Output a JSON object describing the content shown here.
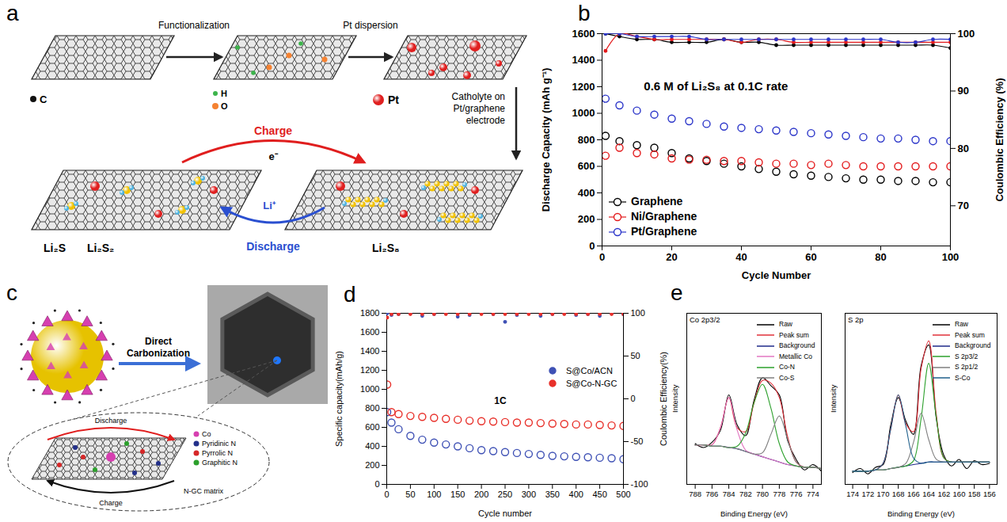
{
  "diagrams": [
    {
      "panel": "a",
      "atoms": [
        {
          "label": "C",
          "color": "#111111"
        },
        {
          "label": "H",
          "color": "#3cb44b"
        },
        {
          "label": "O",
          "color": "#f58231"
        },
        {
          "label": "Pt",
          "color": "#e02020"
        }
      ],
      "steps": [
        "Functionalization",
        "Pt dispersion",
        "Catholyte on Pt/graphene electrode"
      ],
      "cycle": {
        "charge": "Charge",
        "electron": "e⁻",
        "ion": "Li⁺",
        "discharge": "Discharge"
      },
      "species_discharged": [
        "Li₂S",
        "Li₂S₂"
      ],
      "species_charged": "Li₂S₈"
    },
    {
      "panel": "c",
      "step": "Direct Carbonization",
      "legend": [
        {
          "label": "Co",
          "color": "#d63fb0"
        },
        {
          "label": "Pyridinic N",
          "color": "#23308a"
        },
        {
          "label": "Pyrrolic N",
          "color": "#d62728"
        },
        {
          "label": "Graphitic N",
          "color": "#2ca02c"
        }
      ],
      "matrix": "N-GC matrix",
      "cycle": {
        "discharge": "Discharge",
        "charge": "Charge"
      }
    }
  ],
  "chart_data": [
    {
      "panel": "b",
      "type": "scatter",
      "x_label": "Cycle Number",
      "y_label": "Discharge Capacity (mAh g⁻¹)",
      "y2_label": "Coulombic Efficiency (%)",
      "x": [
        1,
        5,
        10,
        15,
        20,
        25,
        30,
        35,
        40,
        45,
        50,
        55,
        60,
        65,
        70,
        75,
        80,
        85,
        90,
        95,
        100
      ],
      "xlim": [
        0,
        100
      ],
      "xticks": [
        0,
        20,
        40,
        60,
        80,
        100
      ],
      "ylim": [
        0,
        1600
      ],
      "yticks": [
        0,
        200,
        400,
        600,
        800,
        1000,
        1200,
        1400,
        1600
      ],
      "y2lim": [
        63,
        100
      ],
      "y2ticks": [
        70,
        80,
        90,
        100
      ],
      "legend": "lower left",
      "annotations": [
        {
          "text": "0.6 M of Li₂S₈ at 0.1C rate",
          "x": 12,
          "y": 1200
        }
      ],
      "series": [
        {
          "name": "Graphene",
          "color": "#000000",
          "marker": "open_circle",
          "values": [
            830,
            790,
            760,
            740,
            700,
            660,
            640,
            620,
            600,
            580,
            560,
            540,
            530,
            520,
            510,
            500,
            500,
            490,
            490,
            480,
            480
          ]
        },
        {
          "name": "Ni/Graphene",
          "color": "#e31a1c",
          "marker": "open_circle",
          "values": [
            680,
            740,
            700,
            690,
            660,
            650,
            650,
            640,
            640,
            630,
            620,
            620,
            610,
            620,
            610,
            600,
            600,
            600,
            600,
            600,
            600
          ]
        },
        {
          "name": "Pt/Graphene",
          "color": "#2b35c9",
          "marker": "open_circle",
          "values": [
            1110,
            1060,
            1020,
            990,
            960,
            940,
            920,
            900,
            890,
            880,
            870,
            860,
            850,
            840,
            830,
            820,
            810,
            810,
            800,
            790,
            790
          ]
        },
        {
          "name": "Graphene",
          "color": "#000000",
          "axis": "y2",
          "type": "line",
          "marker": "dot",
          "values": [
            100,
            99.5,
            99,
            99,
            98.5,
            98.5,
            98.5,
            99,
            98.5,
            98.5,
            98,
            98,
            98,
            98,
            98,
            98,
            98,
            98,
            98,
            98,
            97.5
          ]
        },
        {
          "name": "Ni/Graphene",
          "color": "#e31a1c",
          "axis": "y2",
          "type": "line",
          "marker": "dot",
          "values": [
            97,
            100,
            99.5,
            99,
            99,
            99,
            99,
            99,
            98.5,
            99,
            99,
            98.5,
            98.5,
            98.5,
            98.5,
            98.5,
            98.5,
            98.5,
            98.5,
            98.5,
            98.5
          ]
        },
        {
          "name": "Pt/Graphene",
          "color": "#2b35c9",
          "axis": "y2",
          "type": "line",
          "marker": "dot",
          "values": [
            100,
            100,
            99.5,
            99.5,
            99.5,
            99.5,
            99,
            99,
            99,
            99,
            99,
            99,
            99,
            99,
            99,
            99,
            99,
            98.5,
            98.5,
            99,
            99
          ]
        }
      ]
    },
    {
      "panel": "d",
      "type": "scatter",
      "x_label": "Cycle number",
      "y_label": "Specific capacity(mAh/g)",
      "y2_label": "Coulombic Efficiency(%)",
      "x": [
        1,
        10,
        25,
        50,
        75,
        100,
        125,
        150,
        175,
        200,
        225,
        250,
        275,
        300,
        325,
        350,
        375,
        400,
        425,
        450,
        475,
        500
      ],
      "xlim": [
        0,
        500
      ],
      "xticks": [
        0,
        50,
        100,
        150,
        200,
        250,
        300,
        350,
        400,
        450,
        500
      ],
      "ylim": [
        0,
        1800
      ],
      "yticks": [
        0,
        200,
        400,
        600,
        800,
        1000,
        1200,
        1400,
        1600,
        1800
      ],
      "y2lim": [
        -100,
        100
      ],
      "y2ticks": [
        -100,
        -50,
        0,
        50,
        100
      ],
      "legend": "right",
      "annotations": [
        {
          "text": "1C",
          "x": 240,
          "y": 880
        }
      ],
      "series": [
        {
          "name": "S@Co/ACN",
          "color": "#3f51b5",
          "marker": "open_circle",
          "values": [
            760,
            650,
            580,
            510,
            470,
            440,
            420,
            400,
            380,
            360,
            350,
            340,
            330,
            320,
            310,
            300,
            295,
            290,
            285,
            280,
            275,
            265
          ]
        },
        {
          "name": "S@Co-N-GC",
          "color": "#e8302a",
          "marker": "open_circle",
          "values": [
            1050,
            760,
            740,
            720,
            710,
            700,
            690,
            680,
            670,
            665,
            660,
            655,
            650,
            650,
            645,
            640,
            635,
            630,
            630,
            625,
            620,
            615
          ]
        },
        {
          "name": "S@Co/ACN",
          "color": "#3f51b5",
          "axis": "y2",
          "marker": "dot",
          "values": [
            100,
            98,
            99,
            100,
            97,
            99,
            100,
            96,
            98,
            100,
            99,
            90,
            98,
            100,
            97,
            99,
            100,
            98,
            99,
            97,
            100,
            99
          ]
        },
        {
          "name": "S@Co-N-GC",
          "color": "#e8302a",
          "axis": "y2",
          "marker": "dot",
          "values": [
            95,
            99,
            99,
            99,
            99,
            99,
            99,
            99,
            99,
            99,
            99,
            99,
            99,
            99,
            99,
            99,
            99,
            99,
            99,
            99,
            99,
            99
          ]
        }
      ]
    },
    {
      "panel": "e",
      "type": "line",
      "title": "Co 2p3/2",
      "x_label": "Binding Energy (eV)",
      "y_label": "Intensity",
      "tick_labels": "x",
      "x": [
        788,
        787,
        786,
        785,
        784,
        783,
        782,
        781,
        780,
        779,
        778,
        777,
        776,
        775,
        774,
        773
      ],
      "xlim": [
        789,
        773
      ],
      "xticks": [
        788,
        786,
        784,
        782,
        780,
        778,
        776,
        774
      ],
      "ylim": [
        0,
        130
      ],
      "legend": "upper right",
      "series": [
        {
          "name": "Raw",
          "color": "#000000",
          "values": [
            31,
            28,
            32,
            41,
            68,
            45,
            37,
            64,
            81,
            75,
            68,
            33,
            19,
            11,
            15,
            10
          ]
        },
        {
          "name": "Peak sum",
          "color": "#e0303a",
          "values": [
            30,
            30,
            30,
            43,
            66,
            43,
            40,
            62,
            79,
            77,
            66,
            36,
            17,
            13,
            13,
            12
          ]
        },
        {
          "name": "Background",
          "color": "#1f2a8a",
          "values": [
            30,
            30,
            29,
            29,
            28,
            27,
            25,
            23,
            21,
            19,
            17,
            15,
            14,
            13,
            13,
            12
          ]
        },
        {
          "name": "Metallic Co",
          "color": "#e377c2",
          "values": [
            30,
            30,
            30,
            43,
            66,
            41,
            26,
            23,
            21,
            19,
            17,
            15,
            14,
            13,
            13,
            12
          ]
        },
        {
          "name": "Co-N",
          "color": "#2ca02c",
          "values": [
            30,
            30,
            29,
            29,
            28,
            29,
            39,
            62,
            76,
            58,
            31,
            17,
            14,
            13,
            13,
            12
          ]
        },
        {
          "name": "Co-S",
          "color": "#7f7f7f",
          "values": [
            30,
            30,
            29,
            29,
            28,
            27,
            25,
            23,
            24,
            38,
            52,
            34,
            17,
            13,
            13,
            12
          ]
        }
      ]
    },
    {
      "type": "line",
      "title": "S 2p",
      "x_label": "Binding Energy (eV)",
      "y_label": "Intensity",
      "tick_labels": "x",
      "x": [
        174,
        173,
        172,
        171,
        170,
        169,
        168,
        167,
        166,
        165,
        164,
        163,
        162,
        161,
        160,
        159,
        158,
        157,
        156
      ],
      "xlim": [
        175,
        155
      ],
      "xticks": [
        174,
        172,
        170,
        168,
        166,
        164,
        162,
        160,
        158,
        156
      ],
      "ylim": [
        0,
        130
      ],
      "legend": "upper right",
      "series": [
        {
          "name": "Raw",
          "color": "#000000",
          "values": [
            9,
            12,
            8,
            13,
            15,
            45,
            66,
            48,
            38,
            90,
            106,
            50,
            22,
            14,
            19,
            12,
            18,
            15,
            16
          ]
        },
        {
          "name": "Peak sum",
          "color": "#e0303a",
          "values": [
            10,
            10,
            10,
            11,
            16,
            42,
            68,
            46,
            40,
            88,
            109,
            53,
            20,
            17,
            17,
            17,
            17,
            17,
            17
          ]
        },
        {
          "name": "Background",
          "color": "#1f2a8a",
          "values": [
            10,
            10,
            10,
            11,
            11,
            12,
            13,
            14,
            15,
            16,
            17,
            17,
            17,
            17,
            17,
            17,
            17,
            17,
            17
          ]
        },
        {
          "name": "S 2p3/2",
          "color": "#2ca02c",
          "values": [
            10,
            10,
            10,
            11,
            11,
            12,
            13,
            14,
            18,
            50,
            92,
            51,
            20,
            17,
            17,
            17,
            17,
            17,
            17
          ]
        },
        {
          "name": "S 2p1/2",
          "color": "#7f7f7f",
          "values": [
            10,
            10,
            10,
            11,
            11,
            12,
            13,
            16,
            32,
            54,
            34,
            19,
            17,
            17,
            17,
            17,
            17,
            17,
            17
          ]
        },
        {
          "name": "S-Co",
          "color": "#1f5f8b",
          "values": [
            10,
            10,
            10,
            11,
            16,
            42,
            68,
            44,
            20,
            16,
            17,
            17,
            17,
            17,
            17,
            17,
            17,
            17,
            17
          ]
        }
      ]
    }
  ]
}
